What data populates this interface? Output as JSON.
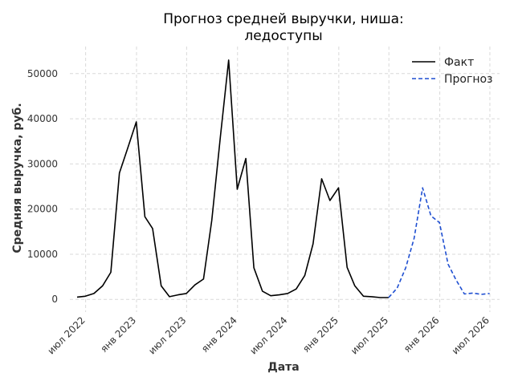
{
  "chart_data": {
    "type": "line",
    "title_lines": [
      "Прогноз средней выручки, ниша:",
      "ледоступы"
    ],
    "xlabel": "Дата",
    "ylabel": "Средняя выручка, руб.",
    "ylim": [
      -2800,
      56000
    ],
    "xlim": [
      "2022-05-05",
      "2026-08-05"
    ],
    "yticks": [
      0,
      10000,
      20000,
      30000,
      40000,
      50000
    ],
    "xticks": [
      {
        "date": "2022-07-01",
        "label": "июл 2022"
      },
      {
        "date": "2023-01-01",
        "label": "янв 2023"
      },
      {
        "date": "2023-07-01",
        "label": "июл 2023"
      },
      {
        "date": "2024-01-01",
        "label": "янв 2024"
      },
      {
        "date": "2024-07-01",
        "label": "июл 2024"
      },
      {
        "date": "2025-01-01",
        "label": "янв 2025"
      },
      {
        "date": "2025-07-01",
        "label": "июл 2025"
      },
      {
        "date": "2026-01-01",
        "label": "янв 2026"
      },
      {
        "date": "2026-07-01",
        "label": "июл 2026"
      }
    ],
    "grid": true,
    "legend_position": "top-right",
    "series": [
      {
        "name": "Факт",
        "color": "#000000",
        "style": "solid",
        "points": [
          [
            "2022-05-31",
            500
          ],
          [
            "2022-06-30",
            700
          ],
          [
            "2022-07-31",
            1300
          ],
          [
            "2022-08-31",
            3000
          ],
          [
            "2022-09-30",
            6000
          ],
          [
            "2022-10-31",
            28000
          ],
          [
            "2022-11-30",
            33500
          ],
          [
            "2022-12-31",
            39300
          ],
          [
            "2023-01-31",
            18300
          ],
          [
            "2023-02-28",
            15700
          ],
          [
            "2023-03-31",
            3000
          ],
          [
            "2023-04-30",
            600
          ],
          [
            "2023-05-31",
            1000
          ],
          [
            "2023-06-30",
            1300
          ],
          [
            "2023-07-31",
            3200
          ],
          [
            "2023-08-31",
            4500
          ],
          [
            "2023-09-30",
            17500
          ],
          [
            "2023-10-31",
            36000
          ],
          [
            "2023-11-30",
            53000
          ],
          [
            "2023-12-31",
            24400
          ],
          [
            "2024-01-31",
            31200
          ],
          [
            "2024-02-29",
            7000
          ],
          [
            "2024-03-31",
            1800
          ],
          [
            "2024-04-30",
            800
          ],
          [
            "2024-05-31",
            1000
          ],
          [
            "2024-06-30",
            1300
          ],
          [
            "2024-07-31",
            2300
          ],
          [
            "2024-08-31",
            5300
          ],
          [
            "2024-09-30",
            12300
          ],
          [
            "2024-10-31",
            26700
          ],
          [
            "2024-11-30",
            21900
          ],
          [
            "2024-12-31",
            24700
          ],
          [
            "2025-01-31",
            7100
          ],
          [
            "2025-02-28",
            3000
          ],
          [
            "2025-03-31",
            700
          ],
          [
            "2025-04-30",
            600
          ],
          [
            "2025-05-31",
            400
          ],
          [
            "2025-06-30",
            400
          ]
        ]
      },
      {
        "name": "Прогноз",
        "color": "#1f4fd1",
        "style": "dashed",
        "points": [
          [
            "2025-06-30",
            400
          ],
          [
            "2025-07-31",
            2500
          ],
          [
            "2025-08-31",
            7000
          ],
          [
            "2025-09-30",
            13500
          ],
          [
            "2025-10-31",
            24700
          ],
          [
            "2025-11-30",
            18500
          ],
          [
            "2025-12-31",
            17000
          ],
          [
            "2026-01-31",
            7800
          ],
          [
            "2026-02-28",
            4400
          ],
          [
            "2026-03-31",
            1200
          ],
          [
            "2026-04-30",
            1400
          ],
          [
            "2026-05-31",
            1100
          ],
          [
            "2026-06-30",
            1300
          ]
        ]
      }
    ]
  }
}
